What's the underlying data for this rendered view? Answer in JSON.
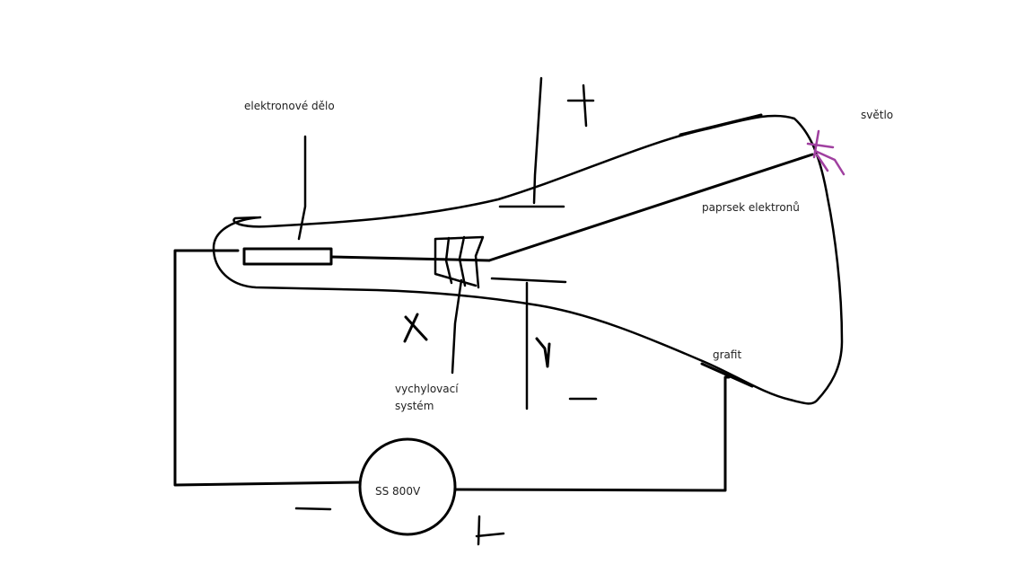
{
  "labels": {
    "electron_gun": "elektronové dělo",
    "light": "světlo",
    "electron_beam": "paprsek elektronů",
    "graphite": "grafit",
    "deflection_line1": "vychylovací",
    "deflection_line2": "systém",
    "source": "SS 800V"
  },
  "colors": {
    "ink": "#000000",
    "light_mark": "#a040a0"
  }
}
